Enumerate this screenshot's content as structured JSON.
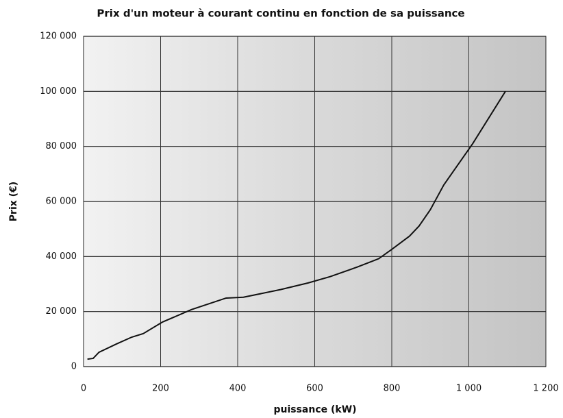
{
  "chart_data": {
    "type": "line",
    "title": "Prix  d'un moteur à courant continu en fonction de sa puissance",
    "xlabel": "puissance (kW)",
    "ylabel": "Prix (€)",
    "x": [
      10,
      25,
      40,
      85,
      125,
      155,
      205,
      280,
      370,
      415,
      512,
      583,
      640,
      711,
      766,
      800,
      846,
      871,
      900,
      935,
      1010,
      1095
    ],
    "series": [
      {
        "name": "Prix",
        "color": "#111111",
        "values": [
          2700,
          3000,
          5200,
          8200,
          10700,
          12000,
          16200,
          20700,
          24900,
          25200,
          28000,
          30400,
          32700,
          36200,
          39200,
          42600,
          47400,
          51100,
          57000,
          66000,
          81000,
          100000
        ]
      }
    ],
    "xlim": [
      0,
      1200
    ],
    "xticks": [
      0,
      200,
      400,
      600,
      800,
      {
        "value": 1000,
        "label": "1 000"
      },
      {
        "value": 1200,
        "label": "1 200"
      }
    ],
    "ylim": [
      0,
      120000
    ],
    "yticks": [
      0,
      {
        "value": 20000,
        "label": "20 000"
      },
      {
        "value": 40000,
        "label": "40 000"
      },
      {
        "value": 60000,
        "label": "60 000"
      },
      {
        "value": 80000,
        "label": "80 000"
      },
      {
        "value": 100000,
        "label": "100 000"
      },
      {
        "value": 120000,
        "label": "120 000"
      }
    ],
    "grid": true
  }
}
